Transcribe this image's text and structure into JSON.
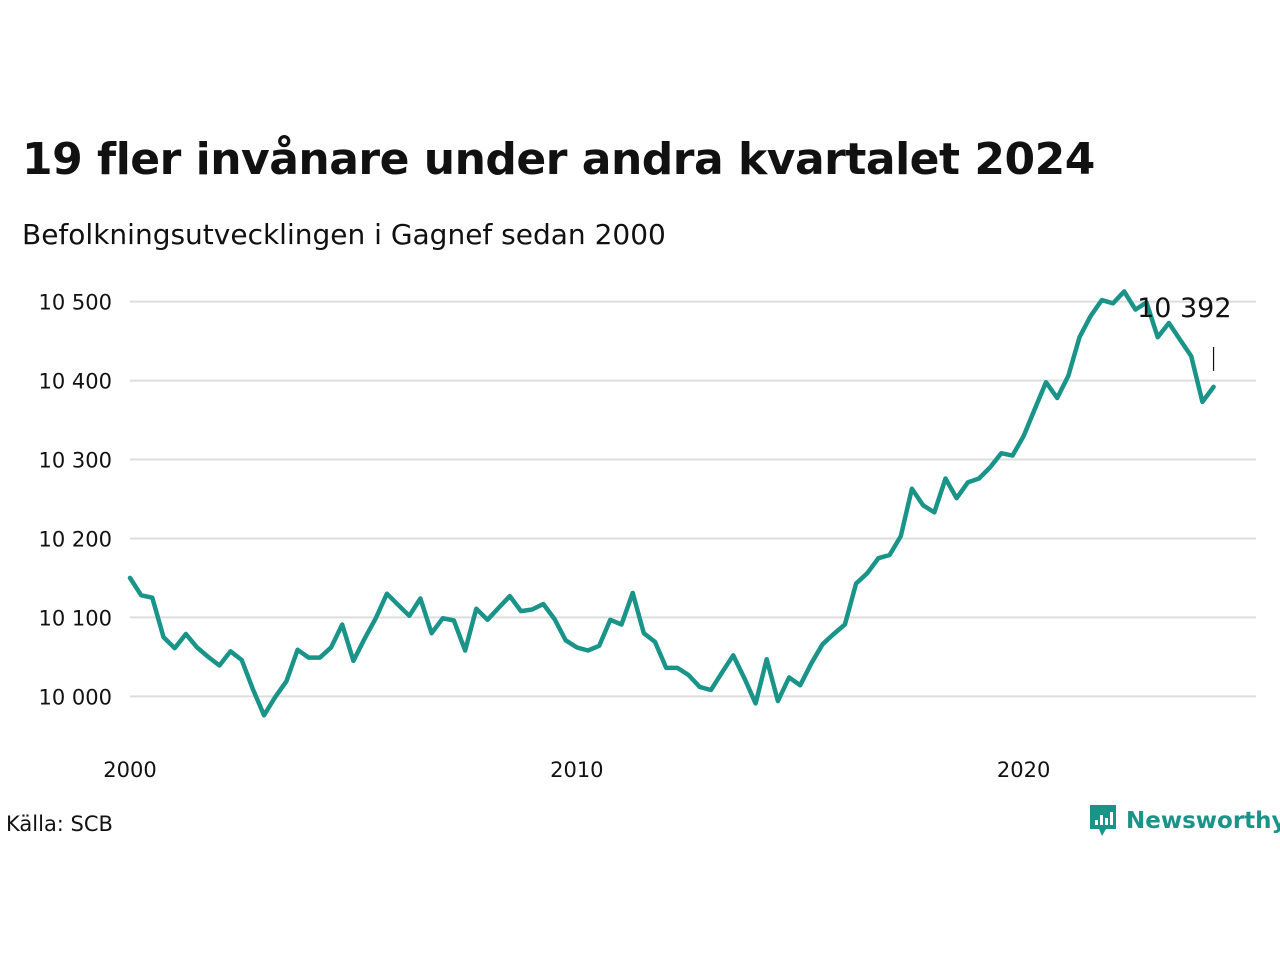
{
  "title": "19 fler invånare under andra kvartalet 2024",
  "subtitle": "Befolkningsutvecklingen i Gagnef sedan 2000",
  "source": "Källa: SCB",
  "brand": {
    "name": "Newsworthy",
    "color": "#1a9488"
  },
  "colors": {
    "line": "#1a9488",
    "grid": "#dddddd",
    "text": "#111111"
  },
  "chart_data": {
    "type": "line",
    "title": "19 fler invånare under andra kvartalet 2024",
    "subtitle": "Befolkningsutvecklingen i Gagnef sedan 2000",
    "xlim": [
      2000,
      2025.2
    ],
    "ylim": [
      9970,
      10530
    ],
    "x_ticks": [
      2000,
      2010,
      2020
    ],
    "x_tick_labels": [
      "2000",
      "2010",
      "2020"
    ],
    "y_ticks": [
      10000,
      10100,
      10200,
      10300,
      10400,
      10500
    ],
    "y_tick_labels": [
      "10 000",
      "10 100",
      "10 200",
      "10 300",
      "10 400",
      "10 500"
    ],
    "grid": "horizontal",
    "annotation": {
      "text": "10 392",
      "x": 2024.25,
      "y": 10392
    },
    "series": [
      {
        "x_start": 2000,
        "x_step": 0.25,
        "values": [
          10150,
          10128,
          10125,
          10075,
          10061,
          10079,
          10062,
          10050,
          10039,
          10057,
          10046,
          10009,
          9976,
          9999,
          10019,
          10059,
          10049,
          10049,
          10062,
          10091,
          10045,
          10073,
          10099,
          10130,
          10116,
          10102,
          10124,
          10080,
          10099,
          10096,
          10058,
          10111,
          10097,
          10112,
          10127,
          10108,
          10110,
          10117,
          10098,
          10071,
          10062,
          10058,
          10064,
          10097,
          10091,
          10131,
          10080,
          10069,
          10036,
          10036,
          10027,
          10012,
          10008,
          10030,
          10052,
          10023,
          9991,
          10047,
          9994,
          10024,
          10014,
          10042,
          10066,
          10079,
          10091,
          10143,
          10156,
          10175,
          10179,
          10203,
          10263,
          10242,
          10233,
          10276,
          10251,
          10271,
          10276,
          10290,
          10308,
          10305,
          10330,
          10364,
          10398,
          10378,
          10406,
          10455,
          10482,
          10502,
          10498,
          10513,
          10490,
          10499,
          10455,
          10473,
          10452,
          10431,
          10373,
          10392
        ]
      }
    ]
  }
}
